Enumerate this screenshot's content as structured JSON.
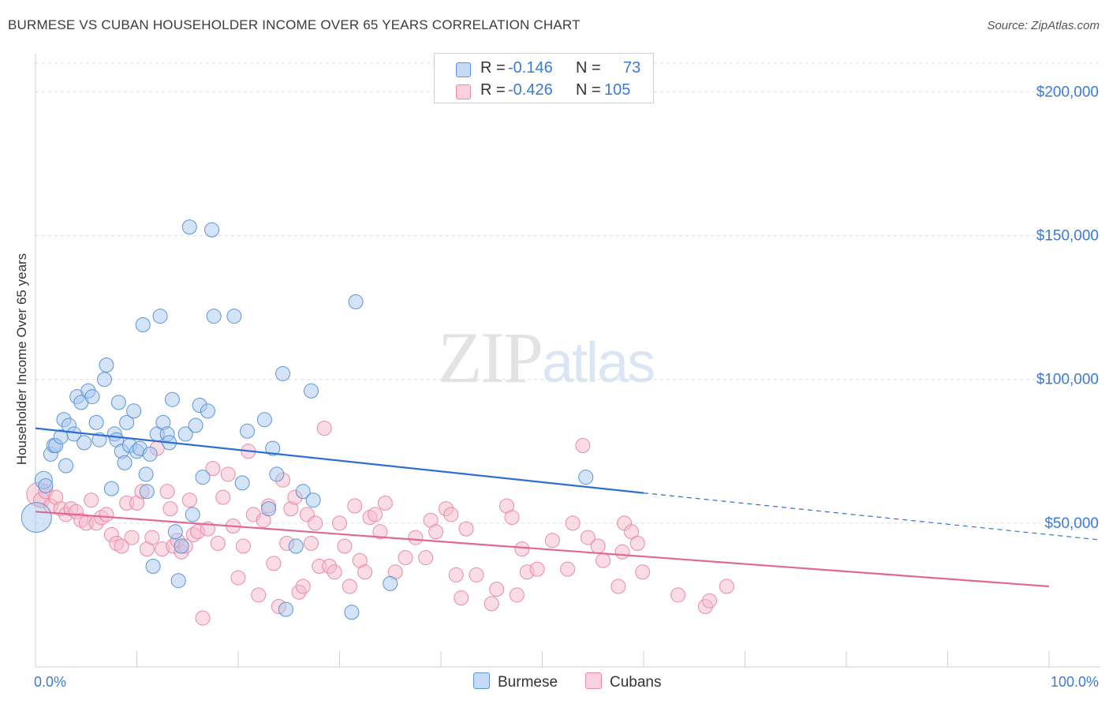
{
  "title": "BURMESE VS CUBAN HOUSEHOLDER INCOME OVER 65 YEARS CORRELATION CHART",
  "source": "Source: ZipAtlas.com",
  "watermark": {
    "zip": "ZIP",
    "atlas": "atlas"
  },
  "legend": {
    "burmese": {
      "r_label": "R =",
      "r_value": "-0.146",
      "n_label": "N =",
      "n_value": "73"
    },
    "cubans": {
      "r_label": "R =",
      "r_value": "-0.426",
      "n_label": "N =",
      "n_value": "105"
    }
  },
  "bottom_legend": {
    "burmese": "Burmese",
    "cubans": "Cubans"
  },
  "colors": {
    "burmese_fill": "#a9c8ee",
    "burmese_stroke": "#5b95d8",
    "burmese_line": "#2f6fcf",
    "cubans_fill": "#f5b9cc",
    "cubans_stroke": "#e98aa9",
    "cubans_line": "#e06994",
    "tick_text": "#3a7bd5",
    "grid": "#dcdcdc"
  },
  "chart_data": {
    "type": "scatter",
    "title": "BURMESE VS CUBAN HOUSEHOLDER INCOME OVER 65 YEARS CORRELATION CHART",
    "xlabel": "",
    "ylabel": "Householder Income Over 65 years",
    "xlim": [
      0,
      100
    ],
    "ylim": [
      0,
      210000
    ],
    "x_tick_labels": [
      "0.0%",
      "100.0%"
    ],
    "y_ticks": [
      50000,
      100000,
      150000,
      200000
    ],
    "y_tick_labels": [
      "$50,000",
      "$100,000",
      "$150,000",
      "$200,000"
    ],
    "grid": "horizontal dashed",
    "legend_position": "top-center",
    "series": [
      {
        "name": "Burmese",
        "r": -0.146,
        "n": 73,
        "trend": {
          "x0": 0,
          "y0": 83000,
          "x1": 60,
          "y1": 60500,
          "dashed_to_x": 100,
          "dashed_to_y": 46000
        },
        "points": [
          [
            0.1,
            52000,
            18
          ],
          [
            0.8,
            65000,
            10
          ],
          [
            1.0,
            63000,
            8
          ],
          [
            1.5,
            74000,
            8
          ],
          [
            1.8,
            77000,
            8
          ],
          [
            2.0,
            77000,
            8
          ],
          [
            2.5,
            80000,
            8
          ],
          [
            2.8,
            86000,
            8
          ],
          [
            3.0,
            70000,
            8
          ],
          [
            3.3,
            84000,
            8
          ],
          [
            3.8,
            81000,
            8
          ],
          [
            4.1,
            94000,
            8
          ],
          [
            4.5,
            92000,
            8
          ],
          [
            4.8,
            78000,
            8
          ],
          [
            5.2,
            96000,
            8
          ],
          [
            5.6,
            94000,
            8
          ],
          [
            6.0,
            85000,
            8
          ],
          [
            6.3,
            79000,
            8
          ],
          [
            6.8,
            100000,
            8
          ],
          [
            7.0,
            105000,
            8
          ],
          [
            7.5,
            62000,
            8
          ],
          [
            7.8,
            81000,
            8
          ],
          [
            8.0,
            79000,
            8
          ],
          [
            8.2,
            92000,
            8
          ],
          [
            8.5,
            75000,
            8
          ],
          [
            8.8,
            71000,
            8
          ],
          [
            9.0,
            85000,
            8
          ],
          [
            9.3,
            77000,
            8
          ],
          [
            9.7,
            89000,
            8
          ],
          [
            10.0,
            75000,
            8
          ],
          [
            10.3,
            76000,
            8
          ],
          [
            10.6,
            119000,
            8
          ],
          [
            10.9,
            67000,
            8
          ],
          [
            11.0,
            61000,
            8
          ],
          [
            11.3,
            74000,
            8
          ],
          [
            11.6,
            35000,
            8
          ],
          [
            12.0,
            81000,
            8
          ],
          [
            12.3,
            122000,
            8
          ],
          [
            12.6,
            85000,
            8
          ],
          [
            13.0,
            81000,
            8
          ],
          [
            13.2,
            78000,
            8
          ],
          [
            13.5,
            93000,
            8
          ],
          [
            13.8,
            47000,
            8
          ],
          [
            14.1,
            30000,
            8
          ],
          [
            14.4,
            42000,
            8
          ],
          [
            14.8,
            81000,
            8
          ],
          [
            15.2,
            153000,
            8
          ],
          [
            15.5,
            53000,
            8
          ],
          [
            15.8,
            84000,
            8
          ],
          [
            16.2,
            91000,
            8
          ],
          [
            16.5,
            66000,
            8
          ],
          [
            17.0,
            89000,
            8
          ],
          [
            17.4,
            152000,
            8
          ],
          [
            17.6,
            122000,
            8
          ],
          [
            19.6,
            122000,
            8
          ],
          [
            20.4,
            64000,
            8
          ],
          [
            20.9,
            82000,
            8
          ],
          [
            22.6,
            86000,
            8
          ],
          [
            23.0,
            55000,
            8
          ],
          [
            23.4,
            76000,
            8
          ],
          [
            23.8,
            67000,
            8
          ],
          [
            24.4,
            102000,
            8
          ],
          [
            24.7,
            20000,
            8
          ],
          [
            25.7,
            42000,
            8
          ],
          [
            26.4,
            61000,
            8
          ],
          [
            27.2,
            96000,
            8
          ],
          [
            27.4,
            58000,
            8
          ],
          [
            31.2,
            19000,
            8
          ],
          [
            31.6,
            127000,
            8
          ],
          [
            35.0,
            29000,
            8
          ],
          [
            54.3,
            66000,
            8
          ]
        ]
      },
      {
        "name": "Cubans",
        "r": -0.426,
        "n": 105,
        "trend": {
          "x0": 0,
          "y0": 54000,
          "x1": 100,
          "y1": 28000
        },
        "points": [
          [
            0.3,
            60000,
            14
          ],
          [
            0.6,
            58000,
            9
          ],
          [
            1.0,
            61000,
            8
          ],
          [
            1.5,
            56000,
            8
          ],
          [
            2.0,
            59000,
            8
          ],
          [
            2.5,
            55000,
            8
          ],
          [
            3.0,
            53000,
            8
          ],
          [
            3.5,
            55000,
            8
          ],
          [
            4.0,
            54000,
            8
          ],
          [
            4.5,
            51000,
            8
          ],
          [
            5.0,
            50000,
            8
          ],
          [
            5.5,
            58000,
            8
          ],
          [
            6.0,
            50000,
            8
          ],
          [
            6.5,
            52000,
            8
          ],
          [
            7.0,
            53000,
            8
          ],
          [
            7.5,
            46000,
            8
          ],
          [
            8.0,
            43000,
            8
          ],
          [
            8.5,
            42000,
            8
          ],
          [
            9.0,
            57000,
            8
          ],
          [
            9.5,
            45000,
            8
          ],
          [
            10.0,
            57000,
            8
          ],
          [
            10.5,
            61000,
            8
          ],
          [
            11.0,
            41000,
            8
          ],
          [
            11.5,
            45000,
            8
          ],
          [
            12.0,
            76000,
            8
          ],
          [
            12.5,
            41000,
            8
          ],
          [
            13.0,
            61000,
            8
          ],
          [
            13.3,
            55000,
            8
          ],
          [
            13.6,
            42000,
            8
          ],
          [
            14.0,
            44000,
            8
          ],
          [
            14.4,
            40000,
            8
          ],
          [
            14.8,
            42000,
            8
          ],
          [
            15.2,
            58000,
            8
          ],
          [
            15.6,
            46000,
            8
          ],
          [
            16.0,
            47000,
            8
          ],
          [
            16.5,
            17000,
            8
          ],
          [
            17.0,
            48000,
            8
          ],
          [
            17.5,
            69000,
            8
          ],
          [
            18.0,
            43000,
            8
          ],
          [
            18.5,
            59000,
            8
          ],
          [
            19.0,
            67000,
            8
          ],
          [
            19.5,
            49000,
            8
          ],
          [
            20.0,
            31000,
            8
          ],
          [
            20.5,
            42000,
            8
          ],
          [
            21.0,
            75000,
            8
          ],
          [
            21.5,
            53000,
            8
          ],
          [
            22.0,
            25000,
            8
          ],
          [
            22.5,
            51000,
            8
          ],
          [
            23.0,
            56000,
            8
          ],
          [
            23.5,
            36000,
            8
          ],
          [
            24.0,
            21000,
            8
          ],
          [
            24.4,
            65000,
            8
          ],
          [
            24.8,
            43000,
            8
          ],
          [
            25.2,
            55000,
            8
          ],
          [
            25.6,
            59000,
            8
          ],
          [
            26.0,
            26000,
            8
          ],
          [
            26.4,
            28000,
            8
          ],
          [
            26.8,
            53000,
            8
          ],
          [
            27.2,
            43000,
            8
          ],
          [
            27.6,
            50000,
            8
          ],
          [
            28.0,
            35000,
            8
          ],
          [
            28.5,
            83000,
            8
          ],
          [
            29.0,
            35000,
            8
          ],
          [
            29.5,
            33000,
            8
          ],
          [
            30.0,
            50000,
            8
          ],
          [
            30.5,
            42000,
            8
          ],
          [
            31.0,
            28000,
            8
          ],
          [
            31.5,
            56000,
            8
          ],
          [
            32.0,
            37000,
            8
          ],
          [
            32.5,
            33000,
            8
          ],
          [
            33.0,
            52000,
            8
          ],
          [
            33.5,
            53000,
            8
          ],
          [
            34.0,
            47000,
            8
          ],
          [
            34.5,
            57000,
            8
          ],
          [
            35.5,
            33000,
            8
          ],
          [
            36.5,
            38000,
            8
          ],
          [
            37.5,
            45000,
            8
          ],
          [
            38.5,
            38000,
            8
          ],
          [
            39.0,
            51000,
            8
          ],
          [
            39.5,
            47000,
            8
          ],
          [
            40.5,
            55000,
            8
          ],
          [
            41.0,
            53000,
            8
          ],
          [
            41.5,
            32000,
            8
          ],
          [
            42.0,
            24000,
            8
          ],
          [
            42.5,
            48000,
            8
          ],
          [
            43.5,
            32000,
            8
          ],
          [
            45.0,
            22000,
            8
          ],
          [
            45.5,
            27000,
            8
          ],
          [
            46.5,
            56000,
            8
          ],
          [
            47.0,
            52000,
            8
          ],
          [
            47.5,
            25000,
            8
          ],
          [
            48.0,
            41000,
            8
          ],
          [
            48.5,
            33000,
            8
          ],
          [
            49.5,
            34000,
            8
          ],
          [
            51.0,
            44000,
            8
          ],
          [
            52.5,
            34000,
            8
          ],
          [
            53.0,
            50000,
            8
          ],
          [
            54.0,
            77000,
            8
          ],
          [
            54.5,
            45000,
            8
          ],
          [
            55.5,
            42000,
            8
          ],
          [
            56.0,
            37000,
            8
          ],
          [
            57.5,
            28000,
            8
          ],
          [
            57.9,
            40000,
            8
          ],
          [
            58.1,
            50000,
            8
          ],
          [
            58.8,
            47000,
            8
          ],
          [
            59.4,
            43000,
            8
          ],
          [
            59.9,
            33000,
            8
          ],
          [
            63.4,
            25000,
            8
          ],
          [
            66.1,
            21000,
            8
          ],
          [
            66.5,
            23000,
            8
          ],
          [
            68.2,
            28000,
            8
          ]
        ]
      }
    ]
  }
}
